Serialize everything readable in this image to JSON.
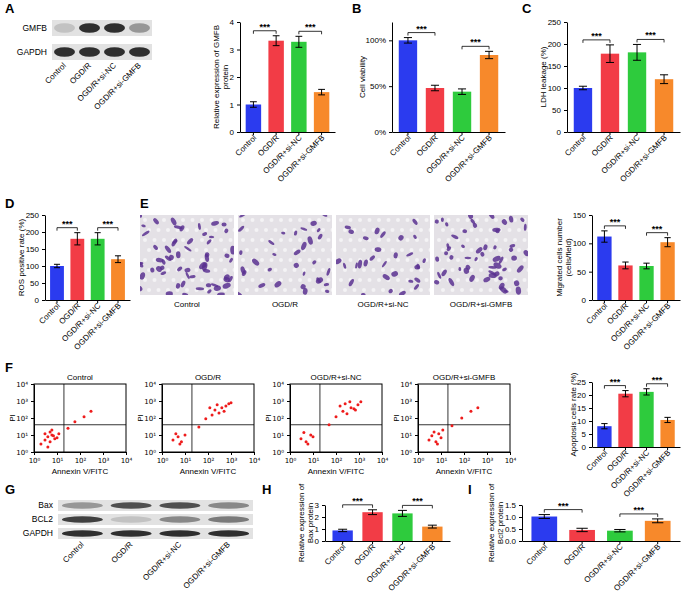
{
  "letters": [
    "A",
    "B",
    "C",
    "D",
    "E",
    "F",
    "G",
    "H",
    "I"
  ],
  "blots": [
    {
      "rows": [
        "GMFB",
        "GAPDH"
      ],
      "lanes": [
        "Control",
        "OGD/R",
        "OGD/R+si-NC",
        "OGD/R+si-GMFB"
      ]
    },
    {
      "rows": [
        "Bax",
        "BCL2",
        "GAPDH"
      ],
      "lanes": [
        "Control",
        "OGD/R",
        "OGD/R+si-NC",
        "OGD/R+si-GMFB"
      ]
    }
  ],
  "micrographs": {
    "captions": [
      "Control",
      "OGD/R",
      "OGD/R+si-NC",
      "OGD/R+si-GMFB"
    ]
  },
  "chart_data": [
    {
      "type": "bar",
      "ylabel": "Relative expression of GMFB protein",
      "categories": [
        "Control",
        "OGD/R",
        "OGD/R+si-NC",
        "OGD/R+si-GMFB"
      ],
      "values": [
        1.0,
        3.32,
        3.28,
        1.45
      ],
      "errors": [
        0.1,
        0.18,
        0.2,
        0.1
      ],
      "colors": [
        "#2b3bef",
        "#f23c46",
        "#2ecb3d",
        "#f7892b"
      ],
      "ylim": [
        0,
        4
      ],
      "yticks": [
        0,
        1,
        2,
        3,
        4
      ],
      "annotations": [
        {
          "text": "***",
          "between": [
            0,
            1
          ]
        },
        {
          "text": "***",
          "between": [
            2,
            3
          ]
        }
      ]
    },
    {
      "type": "bar",
      "ylabel": "Cell viability",
      "categories": [
        "Control",
        "OGD/R",
        "OGD/R+si-NC",
        "OGD/R+si-GMFB"
      ],
      "values": [
        100,
        48,
        44,
        84
      ],
      "errors": [
        3,
        3,
        3,
        4
      ],
      "colors": [
        "#2b3bef",
        "#f23c46",
        "#2ecb3d",
        "#f7892b"
      ],
      "ylim": [
        0,
        120
      ],
      "yticks": [
        {
          "value": 0,
          "label": "0%"
        },
        {
          "value": 50,
          "label": "50%"
        },
        {
          "value": 100,
          "label": "100%"
        }
      ],
      "annotations": [
        {
          "text": "***",
          "between": [
            0,
            1
          ]
        },
        {
          "text": "***",
          "between": [
            2,
            3
          ]
        }
      ]
    },
    {
      "type": "bar",
      "ylabel": "LDH leakage (%)",
      "categories": [
        "Control",
        "OGD/R",
        "OGD/R+si-NC",
        "OGD/R+si-GMFB"
      ],
      "values": [
        100,
        178,
        181,
        120
      ],
      "errors": [
        4,
        20,
        18,
        10
      ],
      "colors": [
        "#2b3bef",
        "#f23c46",
        "#2ecb3d",
        "#f7892b"
      ],
      "ylim": [
        0,
        250
      ],
      "yticks": [
        0,
        50,
        100,
        150,
        200,
        250
      ],
      "annotations": [
        {
          "text": "***",
          "between": [
            0,
            1
          ]
        },
        {
          "text": "***",
          "between": [
            2,
            3
          ]
        }
      ]
    },
    {
      "type": "bar",
      "ylabel": "ROS positive rate (%)",
      "categories": [
        "Control",
        "OGD/R",
        "OGD/R+si-NC",
        "OGD/R+si-GMFB"
      ],
      "values": [
        100,
        180,
        180,
        120
      ],
      "errors": [
        5,
        18,
        18,
        10
      ],
      "colors": [
        "#2b3bef",
        "#f23c46",
        "#2ecb3d",
        "#f7892b"
      ],
      "ylim": [
        0,
        250
      ],
      "yticks": [
        0,
        50,
        100,
        150,
        200,
        250
      ],
      "annotations": [
        {
          "text": "***",
          "between": [
            0,
            1
          ]
        },
        {
          "text": "***",
          "between": [
            2,
            3
          ]
        }
      ]
    },
    {
      "type": "bar",
      "ylabel": "Migrated cells number (cells/field)",
      "categories": [
        "Control",
        "OGD/R",
        "OGD/R+si-NC",
        "OGD/R+si-GMFB"
      ],
      "values": [
        112,
        61,
        60,
        102
      ],
      "errors": [
        10,
        6,
        5,
        8
      ],
      "colors": [
        "#2b3bef",
        "#f23c46",
        "#2ecb3d",
        "#f7892b"
      ],
      "ylim": [
        0,
        150
      ],
      "yticks": [
        0,
        50,
        100,
        150
      ],
      "annotations": [
        {
          "text": "***",
          "between": [
            0,
            1
          ]
        },
        {
          "text": "***",
          "between": [
            2,
            3
          ]
        }
      ]
    },
    {
      "type": "scatter",
      "title": "Control",
      "xlabel": "Annexin V/FITC",
      "ylabel": "PI",
      "log": true,
      "xlim": [
        1,
        10000
      ],
      "ylim": [
        1,
        10000
      ],
      "xticks": [
        {
          "value": 1,
          "label": "10⁰"
        },
        {
          "value": 10,
          "label": "10¹"
        },
        {
          "value": 100,
          "label": "10²"
        },
        {
          "value": 1000,
          "label": "10³"
        },
        {
          "value": 10000,
          "label": "10⁴"
        }
      ],
      "yticks": [
        {
          "value": 1,
          "label": "10⁰"
        },
        {
          "value": 10,
          "label": "10¹"
        },
        {
          "value": 100,
          "label": "10²"
        },
        {
          "value": 1000,
          "label": "10³"
        },
        {
          "value": 10000,
          "label": "10⁴"
        }
      ],
      "x": [
        2,
        3,
        4,
        5,
        6,
        8,
        3,
        5,
        7,
        10,
        12,
        4,
        6,
        30,
        60,
        150,
        300
      ],
      "values": [
        3,
        5,
        8,
        4,
        10,
        6,
        12,
        15,
        9,
        7,
        12,
        2,
        20,
        25,
        60,
        120,
        250
      ],
      "color": "#ee1c1c",
      "gates": {
        "x": 20,
        "y": 40
      }
    },
    {
      "type": "scatter",
      "title": "OGD/R",
      "xlabel": "Annexin V/FITC",
      "ylabel": "PI",
      "log": true,
      "xlim": [
        1,
        10000
      ],
      "ylim": [
        1,
        10000
      ],
      "xticks": [
        {
          "value": 1,
          "label": "10⁰"
        },
        {
          "value": 10,
          "label": "10¹"
        },
        {
          "value": 100,
          "label": "10²"
        },
        {
          "value": 1000,
          "label": "10³"
        },
        {
          "value": 10000,
          "label": "10⁴"
        }
      ],
      "yticks": [
        {
          "value": 1,
          "label": "10⁰"
        },
        {
          "value": 10,
          "label": "10¹"
        },
        {
          "value": 100,
          "label": "10²"
        },
        {
          "value": 1000,
          "label": "10³"
        },
        {
          "value": 10000,
          "label": "10⁴"
        }
      ],
      "x": [
        3,
        5,
        7,
        4,
        10,
        6,
        40,
        80,
        150,
        200,
        300,
        400,
        600,
        800,
        250,
        500,
        120,
        1000
      ],
      "values": [
        5,
        8,
        4,
        12,
        10,
        3,
        30,
        90,
        150,
        300,
        200,
        400,
        500,
        700,
        600,
        250,
        400,
        800
      ],
      "color": "#ee1c1c",
      "gates": {
        "x": 20,
        "y": 40
      }
    },
    {
      "type": "scatter",
      "title": "OGD/R+si-NC",
      "xlabel": "Annexin V/FITC",
      "ylabel": "PI",
      "log": true,
      "xlim": [
        1,
        10000
      ],
      "ylim": [
        1,
        10000
      ],
      "xticks": [
        {
          "value": 1,
          "label": "10⁰"
        },
        {
          "value": 10,
          "label": "10¹"
        },
        {
          "value": 100,
          "label": "10²"
        },
        {
          "value": 1000,
          "label": "10³"
        },
        {
          "value": 10000,
          "label": "10⁴"
        }
      ],
      "yticks": [
        {
          "value": 1,
          "label": "10⁰"
        },
        {
          "value": 10,
          "label": "10¹"
        },
        {
          "value": 100,
          "label": "10²"
        },
        {
          "value": 1000,
          "label": "10³"
        },
        {
          "value": 10000,
          "label": "10⁴"
        }
      ],
      "x": [
        3,
        5,
        8,
        4,
        6,
        10,
        50,
        100,
        200,
        300,
        450,
        600,
        900,
        250,
        400,
        1200,
        150,
        700
      ],
      "values": [
        6,
        4,
        10,
        14,
        3,
        8,
        40,
        120,
        250,
        180,
        400,
        350,
        600,
        700,
        900,
        900,
        500,
        300
      ],
      "color": "#ee1c1c",
      "gates": {
        "x": 20,
        "y": 40
      }
    },
    {
      "type": "scatter",
      "title": "OGD/R+si-GMFB",
      "xlabel": "Annexin V/FITC",
      "ylabel": "PI",
      "log": true,
      "xlim": [
        1,
        10000
      ],
      "ylim": [
        1,
        10000
      ],
      "xticks": [
        {
          "value": 1,
          "label": "10⁰"
        },
        {
          "value": 10,
          "label": "10¹"
        },
        {
          "value": 100,
          "label": "10²"
        },
        {
          "value": 1000,
          "label": "10³"
        },
        {
          "value": 10000,
          "label": "10⁴"
        }
      ],
      "yticks": [
        {
          "value": 1,
          "label": "10⁰"
        },
        {
          "value": 10,
          "label": "10¹"
        },
        {
          "value": 100,
          "label": "10²"
        },
        {
          "value": 1000,
          "label": "10³"
        },
        {
          "value": 10000,
          "label": "10⁴"
        }
      ],
      "x": [
        3,
        4,
        6,
        8,
        5,
        10,
        12,
        7,
        30,
        80,
        200,
        400
      ],
      "values": [
        5,
        9,
        4,
        12,
        15,
        7,
        20,
        3,
        35,
        100,
        250,
        400
      ],
      "color": "#ee1c1c",
      "gates": {
        "x": 20,
        "y": 40
      }
    },
    {
      "type": "bar",
      "ylabel": "Apoptosis cells rate (%)",
      "categories": [
        "Control",
        "OGD/R",
        "OGD/R+si-NC",
        "OGD/R+si-GMFB"
      ],
      "values": [
        8,
        20.5,
        21.2,
        10.4
      ],
      "errors": [
        1,
        1.2,
        1.2,
        1
      ],
      "colors": [
        "#2b3bef",
        "#f23c46",
        "#2ecb3d",
        "#f7892b"
      ],
      "ylim": [
        0,
        25
      ],
      "yticks": [
        0,
        5,
        10,
        15,
        20,
        25
      ],
      "annotations": [
        {
          "text": "***",
          "between": [
            0,
            1
          ]
        },
        {
          "text": "***",
          "between": [
            2,
            3
          ]
        }
      ]
    },
    {
      "type": "bar",
      "ylabel": "Relative expression of Bax protein",
      "categories": [
        "Control",
        "OGD/R",
        "OGD/R+si-NC",
        "OGD/R+si-GMFB"
      ],
      "values": [
        0.88,
        2.4,
        2.3,
        1.2
      ],
      "errors": [
        0.1,
        0.2,
        0.25,
        0.12
      ],
      "colors": [
        "#2b3bef",
        "#f23c46",
        "#2ecb3d",
        "#f7892b"
      ],
      "ylim": [
        0,
        3
      ],
      "yticks": [
        0,
        1,
        2,
        3
      ],
      "annotations": [
        {
          "text": "***",
          "between": [
            0,
            1
          ]
        },
        {
          "text": "***",
          "between": [
            2,
            3
          ]
        }
      ]
    },
    {
      "type": "bar",
      "ylabel": "Relative expression of Bcl2 protein",
      "categories": [
        "Control",
        "OGD/R",
        "OGD/R+si-NC",
        "OGD/R+si-GMFB"
      ],
      "values": [
        1.02,
        0.46,
        0.43,
        0.84
      ],
      "errors": [
        0.08,
        0.07,
        0.05,
        0.08
      ],
      "colors": [
        "#2b3bef",
        "#f23c46",
        "#2ecb3d",
        "#f7892b"
      ],
      "ylim": [
        0,
        1.5
      ],
      "yticks": [
        {
          "value": 0,
          "label": "0.0"
        },
        0.5,
        {
          "value": 1,
          "label": "1.0"
        },
        1.5
      ],
      "annotations": [
        {
          "text": "***",
          "between": [
            0,
            1
          ]
        },
        {
          "text": "***",
          "between": [
            2,
            3
          ]
        }
      ]
    }
  ]
}
